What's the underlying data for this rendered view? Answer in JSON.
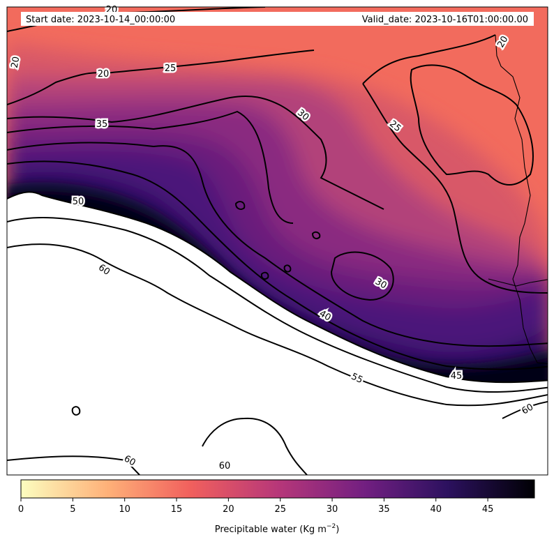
{
  "header": {
    "start_date": "Start date: 2023-10-14_00:00:00",
    "valid_date": "Valid_date: 2023-10-16T01:00:00.00"
  },
  "colorbar": {
    "label_text": "Precipitable water (Kg m",
    "label_exponent": "−2",
    "label_close": ")",
    "ticks": [
      "0",
      "5",
      "10",
      "15",
      "20",
      "25",
      "30",
      "35",
      "40",
      "45"
    ],
    "vmin": 0,
    "vmax": 49.5,
    "colormap": "magma_r",
    "stops": [
      "#fcfdbf",
      "#feb078",
      "#f1605d",
      "#b73779",
      "#721f81",
      "#2c115f",
      "#000004"
    ]
  },
  "contours": {
    "levels": [
      20,
      25,
      30,
      35,
      40,
      45,
      50,
      55,
      60
    ],
    "labels": [
      "20",
      "20",
      "20",
      "20",
      "25",
      "25",
      "30",
      "30",
      "35",
      "40",
      "45",
      "50",
      "55",
      "60",
      "60",
      "60",
      "60"
    ]
  },
  "colors": {
    "dry": "#f36e5c",
    "moist_mid": "#a23c7e",
    "deep": "#3b0f70",
    "land_mask": "#ffffff",
    "contour_line": "#000000",
    "coastline": "#000000"
  }
}
